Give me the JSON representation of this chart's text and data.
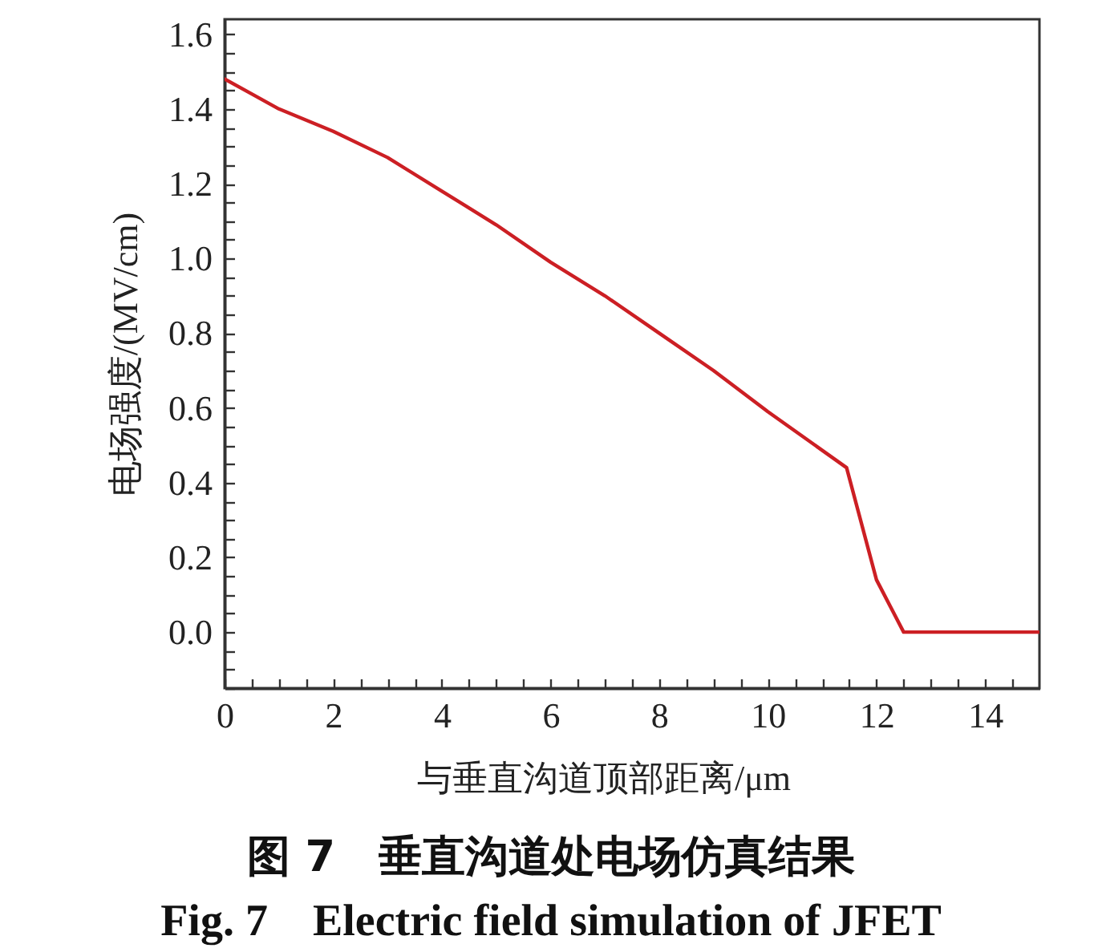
{
  "chart_data": {
    "type": "line",
    "xlabel": "与垂直沟道顶部距离/μm",
    "ylabel": "电场强度/(MV/cm)",
    "annotations": [
      "图 7　垂直沟道处电场仿真结果",
      "Fig. 7　Electric field simulation of JFET"
    ],
    "x": [
      0,
      0.5,
      1,
      2,
      3,
      4,
      5,
      6,
      7,
      8,
      9,
      10,
      11.45,
      12,
      12.5,
      15
    ],
    "series": [
      {
        "color": "#cc1f24",
        "values": [
          1.48,
          1.44,
          1.4,
          1.34,
          1.27,
          1.18,
          1.09,
          0.99,
          0.9,
          0.8,
          0.7,
          0.59,
          0.44,
          0.14,
          0,
          0
        ]
      }
    ],
    "xlim": [
      0,
      15
    ],
    "ylim": [
      -0.15,
      1.64
    ],
    "xticks": [
      0,
      {
        "value": 0.5,
        "label": null
      },
      {
        "value": 1,
        "label": null
      },
      {
        "value": 1.5,
        "label": null
      },
      2,
      {
        "value": 2.5,
        "label": null
      },
      {
        "value": 3,
        "label": null
      },
      {
        "value": 3.5,
        "label": null
      },
      4,
      {
        "value": 4.5,
        "label": null
      },
      {
        "value": 5,
        "label": null
      },
      {
        "value": 5.5,
        "label": null
      },
      6,
      {
        "value": 6.5,
        "label": null
      },
      {
        "value": 7,
        "label": null
      },
      {
        "value": 7.5,
        "label": null
      },
      8,
      {
        "value": 8.5,
        "label": null
      },
      {
        "value": 9,
        "label": null
      },
      {
        "value": 9.5,
        "label": null
      },
      10,
      {
        "value": 10.5,
        "label": null
      },
      {
        "value": 11,
        "label": null
      },
      {
        "value": 11.5,
        "label": null
      },
      12,
      {
        "value": 12.5,
        "label": null
      },
      {
        "value": 13,
        "label": null
      },
      {
        "value": 13.5,
        "label": null
      },
      14,
      {
        "value": 14.5,
        "label": null
      }
    ],
    "yticks": [
      {
        "value": -0.15,
        "label": null
      },
      {
        "value": -0.1,
        "label": null
      },
      {
        "value": -0.05,
        "label": null
      },
      {
        "value": 0,
        "label": "0.0"
      },
      {
        "value": 0.05,
        "label": null
      },
      {
        "value": 0.1,
        "label": null
      },
      {
        "value": 0.15,
        "label": null
      },
      0.2,
      {
        "value": 0.25,
        "label": null
      },
      {
        "value": 0.3,
        "label": null
      },
      {
        "value": 0.35,
        "label": null
      },
      0.4,
      {
        "value": 0.45,
        "label": null
      },
      {
        "value": 0.5,
        "label": null
      },
      {
        "value": 0.55,
        "label": null
      },
      0.6,
      {
        "value": 0.65,
        "label": null
      },
      {
        "value": 0.7,
        "label": null
      },
      {
        "value": 0.75,
        "label": null
      },
      0.8,
      {
        "value": 0.85,
        "label": null
      },
      {
        "value": 0.9,
        "label": null
      },
      {
        "value": 0.95,
        "label": null
      },
      {
        "value": 1,
        "label": "1.0"
      },
      {
        "value": 1.05,
        "label": null
      },
      {
        "value": 1.1,
        "label": null
      },
      {
        "value": 1.15,
        "label": null
      },
      1.2,
      {
        "value": 1.25,
        "label": null
      },
      {
        "value": 1.3,
        "label": null
      },
      {
        "value": 1.35,
        "label": null
      },
      1.4,
      {
        "value": 1.45,
        "label": null
      },
      {
        "value": 1.5,
        "label": null
      },
      {
        "value": 1.55,
        "label": null
      },
      1.6
    ],
    "grid": false,
    "marker": "none",
    "line_style": "solid"
  }
}
